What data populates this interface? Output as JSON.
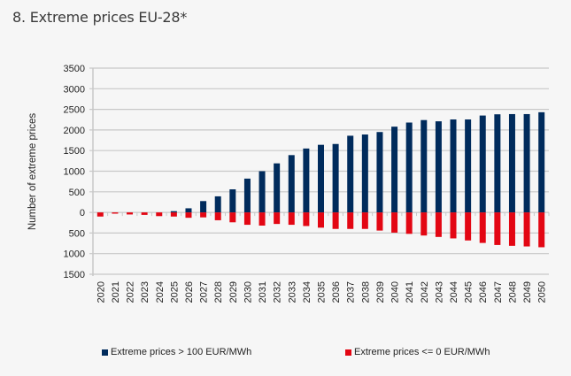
{
  "page": {
    "title": "8. Extreme prices EU-28*"
  },
  "chart_data": {
    "type": "bar",
    "title": "8. Extreme prices EU-28*",
    "xlabel": "",
    "ylabel": "Number of extreme prices",
    "ylim": [
      -1500,
      3500
    ],
    "yticks": [
      3500,
      3000,
      2500,
      2000,
      1500,
      1000,
      500,
      0,
      -500,
      -1000,
      -1500
    ],
    "ytick_labels": [
      "3500",
      "3000",
      "2500",
      "2000",
      "1500",
      "1000",
      "500",
      "0",
      "500",
      "1000",
      "1500"
    ],
    "grid": true,
    "legend_position": "bottom",
    "categories": [
      "2020",
      "2021",
      "2022",
      "2023",
      "2024",
      "2025",
      "2026",
      "2027",
      "2028",
      "2029",
      "2030",
      "2031",
      "2032",
      "2033",
      "2034",
      "2035",
      "2036",
      "2037",
      "2038",
      "2039",
      "2040",
      "2041",
      "2042",
      "2043",
      "2044",
      "2045",
      "2046",
      "2047",
      "2048",
      "2049",
      "2050"
    ],
    "series": [
      {
        "name": "Extreme prices > 100 EUR/MWh",
        "color": "#002b5c",
        "values": [
          0,
          0,
          0,
          0,
          0,
          30,
          100,
          275,
          390,
          560,
          820,
          1000,
          1190,
          1390,
          1550,
          1640,
          1660,
          1860,
          1890,
          1950,
          2080,
          2180,
          2240,
          2210,
          2255,
          2255,
          2350,
          2380,
          2385,
          2385,
          2430
        ]
      },
      {
        "name": "Extreme prices <= 0 EUR/MWh",
        "color": "#e30613",
        "values": [
          -100,
          -30,
          -50,
          -60,
          -90,
          -100,
          -130,
          -120,
          -190,
          -240,
          -300,
          -320,
          -280,
          -300,
          -330,
          -370,
          -400,
          -400,
          -400,
          -440,
          -490,
          -520,
          -560,
          -595,
          -630,
          -680,
          -740,
          -790,
          -810,
          -825,
          -845
        ]
      }
    ]
  }
}
